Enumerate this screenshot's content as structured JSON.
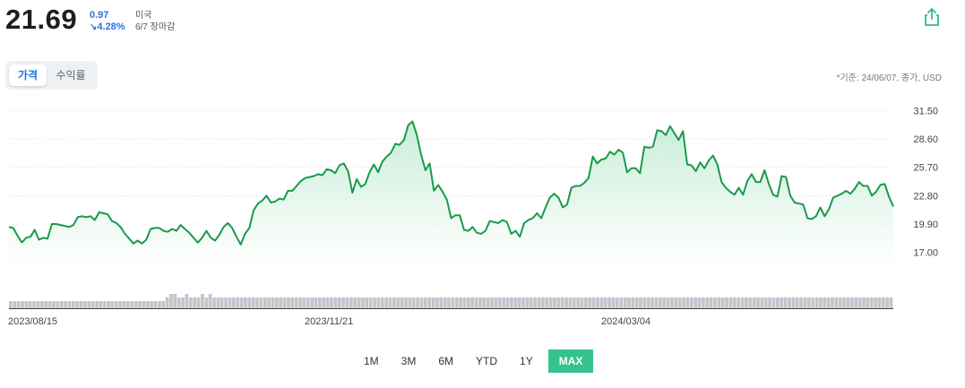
{
  "header": {
    "price": "21.69",
    "change": "0.97",
    "change_pct": "4.28%",
    "market": "미국",
    "session": "6/7 장마감"
  },
  "tabs": {
    "price_label": "가격",
    "return_label": "수익률"
  },
  "basis_note": "*기준: 24/06/07, 종가, USD",
  "ranges": [
    "1M",
    "3M",
    "6M",
    "YTD",
    "1Y",
    "MAX"
  ],
  "active_range": "MAX",
  "colors": {
    "line": "#1a9a4a",
    "fill_top": "#c6ecd6",
    "volume": "#c4c4cc",
    "accent_down": "#2f6fde",
    "range_active": "#33c48d"
  },
  "icons": {
    "share": "share-icon",
    "change_direction": "down-arrow-icon"
  },
  "chart_data": {
    "type": "line",
    "title": "",
    "xlabel": "",
    "ylabel": "",
    "ylim": [
      15.5,
      32.0
    ],
    "yticks": [
      "31.50",
      "28.60",
      "25.70",
      "22.80",
      "19.90",
      "17.00"
    ],
    "xticks": [
      "2023/08/15",
      "2023/11/21",
      "2024/03/04"
    ],
    "grid": true,
    "series": [
      {
        "values": [
          19.6,
          19.5,
          18.7,
          18.0,
          18.5,
          18.6,
          19.3,
          18.3,
          18.5,
          18.4,
          19.9,
          19.9,
          19.8,
          19.7,
          19.6,
          19.8,
          20.6,
          20.7,
          20.6,
          20.7,
          20.3,
          21.1,
          21.0,
          20.9,
          20.2,
          20.0,
          19.6,
          18.9,
          18.4,
          17.9,
          18.2,
          17.9,
          18.3,
          19.4,
          19.5,
          19.5,
          19.2,
          19.1,
          19.4,
          19.2,
          19.8,
          19.4,
          19.0,
          18.5,
          18.0,
          18.5,
          19.2,
          18.5,
          18.2,
          18.8,
          19.6,
          20.0,
          19.5,
          18.6,
          17.8,
          18.9,
          19.5,
          21.3,
          22.0,
          22.3,
          22.8,
          22.1,
          22.2,
          22.5,
          22.4,
          23.3,
          23.3,
          23.8,
          24.3,
          24.6,
          24.7,
          24.8,
          25.0,
          24.9,
          25.5,
          25.4,
          25.1,
          25.9,
          26.1,
          25.3,
          23.1,
          24.5,
          23.7,
          24.0,
          25.2,
          26.0,
          25.2,
          26.3,
          26.8,
          27.2,
          28.1,
          28.0,
          28.5,
          30.0,
          30.4,
          29.0,
          27.0,
          25.4,
          26.1,
          23.3,
          23.9,
          23.2,
          22.4,
          20.5,
          20.8,
          20.8,
          19.3,
          19.2,
          19.6,
          19.0,
          18.9,
          19.2,
          20.2,
          20.1,
          20.0,
          20.3,
          20.1,
          18.9,
          19.2,
          18.6,
          20.0,
          20.3,
          20.5,
          21.0,
          20.5,
          21.6,
          22.6,
          23.0,
          22.6,
          21.6,
          21.9,
          23.6,
          23.8,
          23.8,
          24.1,
          24.6,
          26.8,
          26.1,
          26.5,
          26.6,
          27.3,
          27.0,
          27.5,
          27.2,
          25.2,
          25.6,
          25.6,
          25.1,
          27.8,
          27.7,
          27.8,
          29.5,
          29.4,
          29.0,
          29.9,
          29.2,
          28.5,
          29.4,
          26.0,
          25.9,
          25.3,
          26.2,
          25.6,
          26.4,
          26.9,
          26.0,
          24.2,
          23.6,
          23.2,
          22.9,
          23.6,
          22.9,
          24.3,
          25.0,
          24.2,
          24.2,
          25.4,
          24.0,
          22.9,
          22.7,
          24.8,
          24.7,
          22.8,
          22.1,
          22.0,
          21.9,
          20.5,
          20.4,
          20.7,
          21.6,
          20.7,
          21.4,
          22.6,
          22.8,
          23.0,
          23.3,
          23.0,
          23.5,
          24.2,
          23.8,
          23.8,
          22.8,
          23.2,
          23.9,
          24.0,
          22.7,
          21.69
        ]
      }
    ],
    "volume": [
      2,
      2,
      2,
      2,
      2,
      2,
      2,
      2,
      2,
      2,
      2,
      2,
      2,
      2,
      2,
      2,
      2,
      2,
      2,
      2,
      2,
      2,
      2,
      2,
      2,
      2,
      2,
      2,
      2,
      2,
      2,
      2,
      2,
      2,
      2,
      2,
      2,
      2,
      2,
      2,
      3,
      4,
      4,
      3,
      3,
      4,
      3,
      3,
      3,
      4,
      3,
      4,
      3,
      3,
      3,
      3,
      3,
      3,
      3,
      3,
      3,
      3,
      3,
      3,
      3,
      3,
      3,
      3,
      3,
      3,
      3,
      3,
      3,
      3,
      3,
      3,
      3,
      3,
      3,
      3,
      3,
      3,
      3,
      3,
      3,
      3,
      3,
      3,
      3,
      3,
      3,
      3,
      3,
      3,
      3,
      3,
      3,
      3,
      3,
      3,
      3,
      3,
      3,
      3,
      3,
      3,
      3,
      3,
      3,
      3,
      3,
      3,
      3,
      3,
      3,
      3,
      3,
      3,
      3,
      3,
      3,
      3,
      3,
      3,
      3,
      3,
      3,
      3,
      3,
      3,
      3,
      3,
      3,
      3,
      3,
      3,
      3,
      3,
      3,
      3,
      3,
      3,
      3,
      3,
      3,
      3,
      3,
      3,
      3,
      3,
      3,
      3,
      3,
      3,
      3,
      3,
      3,
      3,
      3,
      3,
      3,
      3,
      3,
      3,
      3,
      3,
      3,
      3,
      3,
      3,
      3,
      3,
      3,
      3,
      3,
      3,
      3,
      3,
      3,
      3,
      3,
      3,
      3,
      3,
      3,
      3,
      3,
      3,
      3,
      3,
      3,
      3,
      3,
      3,
      3,
      3,
      3,
      3,
      3,
      3,
      3,
      3,
      3,
      3,
      3,
      3,
      3,
      3,
      3,
      3,
      3,
      3,
      3,
      3,
      3,
      3,
      3,
      3,
      3,
      3,
      3,
      3,
      3,
      3,
      3,
      3
    ]
  }
}
